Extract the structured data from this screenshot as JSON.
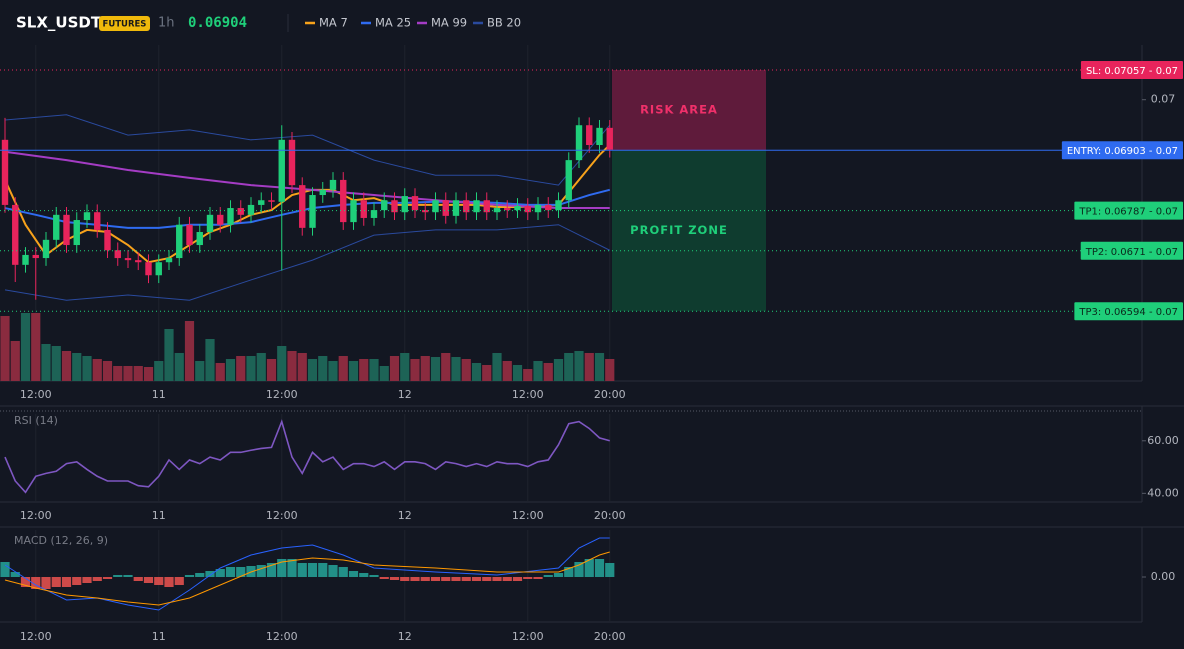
{
  "header": {
    "symbol": "SLX_USDT",
    "badge": "FUTURES",
    "interval": "1h",
    "price": "0.06904"
  },
  "chart_data": [
    {
      "type": "candlestick",
      "categories": [
        null,
        null,
        null,
        "12:00",
        null,
        null,
        null,
        null,
        null,
        null,
        null,
        null,
        null,
        null,
        null,
        "11",
        null,
        null,
        null,
        null,
        null,
        null,
        null,
        null,
        null,
        null,
        null,
        "12:00",
        null,
        null,
        null,
        null,
        null,
        null,
        null,
        null,
        null,
        null,
        null,
        "12",
        null,
        null,
        null,
        null,
        null,
        null,
        null,
        null,
        null,
        null,
        null,
        "12:00",
        null,
        null,
        null,
        null,
        null,
        null,
        null,
        "20:00"
      ],
      "open": [
        0.06923,
        0.06798,
        0.06683,
        0.06702,
        0.06696,
        0.06731,
        0.06779,
        0.06721,
        0.06769,
        0.06784,
        0.0675,
        0.06711,
        0.06696,
        0.06692,
        0.06688,
        0.06663,
        0.06688,
        0.06696,
        0.0676,
        0.06721,
        0.06746,
        0.06779,
        0.0676,
        0.06792,
        0.06779,
        0.06798,
        0.06807,
        0.06804,
        0.06923,
        0.06836,
        0.06754,
        0.06817,
        0.06827,
        0.06846,
        0.06765,
        0.06807,
        0.06773,
        0.06788,
        0.06807,
        0.06784,
        0.06815,
        0.06788,
        0.06784,
        0.06807,
        0.06777,
        0.06807,
        0.06784,
        0.06807,
        0.06784,
        0.06792,
        0.06788,
        0.06796,
        0.06784,
        0.06798,
        0.06788,
        0.06807,
        0.06884,
        0.06951,
        0.06913,
        0.06946
      ],
      "high": [
        0.06965,
        0.06813,
        0.06717,
        0.06717,
        0.06746,
        0.06794,
        0.06794,
        0.06784,
        0.06799,
        0.06799,
        0.06765,
        0.06726,
        0.06711,
        0.06707,
        0.06703,
        0.06703,
        0.06711,
        0.06775,
        0.06775,
        0.06761,
        0.06794,
        0.06794,
        0.06807,
        0.06807,
        0.06813,
        0.06822,
        0.06822,
        0.06951,
        0.06938,
        0.06851,
        0.06832,
        0.06842,
        0.06861,
        0.06861,
        0.06822,
        0.06822,
        0.06803,
        0.06822,
        0.06822,
        0.0683,
        0.0683,
        0.06803,
        0.06822,
        0.06822,
        0.06822,
        0.06822,
        0.06822,
        0.06822,
        0.06807,
        0.06807,
        0.06811,
        0.06811,
        0.06813,
        0.06813,
        0.06822,
        0.06899,
        0.06966,
        0.06966,
        0.06961,
        0.06961
      ],
      "low": [
        0.06783,
        0.0665,
        0.06668,
        0.06616,
        0.06681,
        0.06716,
        0.06706,
        0.06706,
        0.06754,
        0.06735,
        0.06696,
        0.06681,
        0.06677,
        0.06673,
        0.06648,
        0.06648,
        0.06673,
        0.06681,
        0.06706,
        0.06706,
        0.06731,
        0.06745,
        0.06745,
        0.06764,
        0.06764,
        0.06783,
        0.06789,
        0.06672,
        0.06821,
        0.06739,
        0.06739,
        0.06802,
        0.06812,
        0.0675,
        0.0675,
        0.06758,
        0.06758,
        0.06773,
        0.06769,
        0.06769,
        0.06773,
        0.06769,
        0.06769,
        0.06762,
        0.06762,
        0.06769,
        0.06769,
        0.06769,
        0.06769,
        0.06773,
        0.06773,
        0.06769,
        0.06769,
        0.06773,
        0.06773,
        0.06792,
        0.06869,
        0.06898,
        0.06898,
        0.06889
      ],
      "close": [
        0.06798,
        0.06683,
        0.06702,
        0.06696,
        0.06731,
        0.06779,
        0.06721,
        0.06769,
        0.06784,
        0.0675,
        0.06711,
        0.06696,
        0.06692,
        0.06688,
        0.06663,
        0.06688,
        0.06696,
        0.0676,
        0.06721,
        0.06746,
        0.06779,
        0.0676,
        0.06792,
        0.06779,
        0.06798,
        0.06807,
        0.06804,
        0.06923,
        0.06836,
        0.06754,
        0.06817,
        0.06827,
        0.06846,
        0.06765,
        0.06807,
        0.06773,
        0.06788,
        0.06807,
        0.06784,
        0.06815,
        0.06788,
        0.06784,
        0.06807,
        0.06777,
        0.06807,
        0.06784,
        0.06807,
        0.06784,
        0.06792,
        0.06788,
        0.06796,
        0.06784,
        0.06798,
        0.06788,
        0.06807,
        0.06884,
        0.06951,
        0.06913,
        0.06946,
        0.06904
      ],
      "up_color": "#1fcf7a",
      "down_color": "#e8245c",
      "ylim": [
        0.0646,
        0.07105
      ],
      "yticks": [
        0.07
      ],
      "series": [
        {
          "name": "MA 7",
          "color": "#f7a21b",
          "x": [
            0,
            2,
            4,
            6,
            8,
            10,
            12,
            14,
            16,
            18,
            20,
            22,
            24,
            26,
            28,
            30,
            32,
            34,
            36,
            38,
            40,
            42,
            44,
            46,
            48,
            50,
            52,
            54,
            56,
            58,
            59
          ],
          "values": [
            0.06846,
            0.0676,
            0.06702,
            0.06731,
            0.0675,
            0.06746,
            0.06721,
            0.06688,
            0.06696,
            0.06721,
            0.06746,
            0.0676,
            0.06779,
            0.06788,
            0.06817,
            0.06827,
            0.06827,
            0.06807,
            0.06811,
            0.06798,
            0.06798,
            0.06798,
            0.06798,
            0.06798,
            0.06794,
            0.06794,
            0.06796,
            0.06798,
            0.06846,
            0.06894,
            0.06913
          ]
        },
        {
          "name": "MA 25",
          "color": "#2f6bf0",
          "x": [
            0,
            3,
            6,
            9,
            12,
            15,
            18,
            21,
            24,
            27,
            30,
            33,
            36,
            39,
            42,
            45,
            48,
            51,
            54,
            57,
            59
          ],
          "values": [
            0.06792,
            0.06779,
            0.06765,
            0.0676,
            0.06754,
            0.06754,
            0.0676,
            0.0676,
            0.06765,
            0.06779,
            0.06792,
            0.06798,
            0.06802,
            0.06802,
            0.06804,
            0.06804,
            0.06802,
            0.06798,
            0.06798,
            0.06817,
            0.06827
          ]
        },
        {
          "name": "MA 99",
          "color": "#a43cc4",
          "x": [
            0,
            6,
            12,
            18,
            24,
            30,
            36,
            42,
            48,
            54,
            59
          ],
          "values": [
            0.069,
            0.06884,
            0.06865,
            0.0685,
            0.06836,
            0.06827,
            0.06817,
            0.06807,
            0.06798,
            0.06792,
            0.06792
          ]
        },
        {
          "name": "BB 20",
          "color": "#2a4a9e",
          "x": [
            0,
            6,
            12,
            18,
            24,
            30,
            36,
            42,
            48,
            54,
            59
          ],
          "upper": [
            0.06961,
            0.06971,
            0.06932,
            0.06942,
            0.06923,
            0.06932,
            0.06884,
            0.06855,
            0.06855,
            0.06836,
            0.06951
          ],
          "lower": [
            0.06635,
            0.06615,
            0.06625,
            0.06615,
            0.06654,
            0.06692,
            0.0674,
            0.0675,
            0.0675,
            0.0676,
            0.06711
          ]
        }
      ],
      "levels": [
        {
          "label": "SL: 0.07057 - 0.07",
          "value": 0.07057,
          "color": "#e8245c",
          "dash": true
        },
        {
          "label": "ENTRY: 0.06903 - 0.07",
          "value": 0.06903,
          "color": "#2f6bf0",
          "dash": false
        },
        {
          "label": "TP1: 0.06787 - 0.07",
          "value": 0.06787,
          "color": "#1fcf7a",
          "dash": true
        },
        {
          "label": "TP2: 0.0671 - 0.07",
          "value": 0.0671,
          "color": "#1fcf7a",
          "dash": true
        },
        {
          "label": "TP3: 0.06594 - 0.07",
          "value": 0.06594,
          "color": "#1fcf7a",
          "dash": true
        }
      ],
      "zones": [
        {
          "label": "RISK AREA",
          "range": [
            0.06903,
            0.07057
          ],
          "color": "#7a1d44",
          "text_color": "#f0306a"
        },
        {
          "label": "PROFIT ZONE",
          "range": [
            0.06594,
            0.06903
          ],
          "color": "#0f4a34",
          "text_color": "#1fcf7a"
        }
      ]
    },
    {
      "type": "bar",
      "values": [
        65,
        40,
        68,
        68,
        37,
        35,
        30,
        28,
        25,
        22,
        20,
        15,
        15,
        15,
        14,
        20,
        52,
        28,
        60,
        20,
        42,
        18,
        22,
        25,
        25,
        28,
        22,
        35,
        30,
        28,
        22,
        25,
        20,
        25,
        20,
        22,
        22,
        15,
        25,
        28,
        22,
        25,
        24,
        28,
        24,
        22,
        18,
        16,
        28,
        20,
        16,
        12,
        20,
        18,
        22,
        28,
        30,
        28,
        28,
        22
      ],
      "up_color": "#1d6356",
      "down_color": "#8a2b3f",
      "ylim": [
        0,
        336
      ]
    },
    {
      "type": "line",
      "title": "RSI (14)",
      "color": "#7e57c2",
      "categories": [
        null,
        null,
        null,
        "12:00",
        null,
        null,
        null,
        null,
        null,
        null,
        null,
        null,
        null,
        null,
        null,
        "11",
        null,
        null,
        null,
        null,
        null,
        null,
        null,
        null,
        null,
        null,
        null,
        "12:00",
        null,
        null,
        null,
        null,
        null,
        null,
        null,
        null,
        null,
        null,
        null,
        "12",
        null,
        null,
        null,
        null,
        null,
        null,
        null,
        null,
        null,
        null,
        null,
        "12:00",
        null,
        null,
        null,
        null,
        null,
        null,
        null,
        "20:00"
      ],
      "values": [
        53.8,
        44.7,
        40.4,
        46.5,
        47.6,
        48.4,
        51.3,
        52,
        49.1,
        46.5,
        44.7,
        44.7,
        44.7,
        42.9,
        42.5,
        46.5,
        52.7,
        49.1,
        52.7,
        51.3,
        53.8,
        52.7,
        55.6,
        55.6,
        56.4,
        57.1,
        57.5,
        67.3,
        53.8,
        47.6,
        55.6,
        52,
        53.8,
        49.1,
        51.3,
        51.3,
        50.2,
        52,
        49.1,
        52,
        52,
        51.3,
        49.1,
        52,
        51.3,
        50.2,
        51.3,
        50.2,
        52,
        51.3,
        51.3,
        50.2,
        52,
        52.7,
        58.5,
        66.5,
        67.3,
        64.7,
        61.1,
        60
      ],
      "ylim": [
        36.7,
        70.2
      ],
      "yticks": [
        {
          "value": 60,
          "label": "60.00"
        },
        {
          "value": 40,
          "label": "40.00"
        }
      ]
    },
    {
      "type": "macd",
      "title": "MACD (12, 26, 9)",
      "categories": [
        null,
        null,
        null,
        "12:00",
        null,
        null,
        null,
        null,
        null,
        null,
        null,
        null,
        null,
        null,
        null,
        "11",
        null,
        null,
        null,
        null,
        null,
        null,
        null,
        null,
        null,
        null,
        null,
        "12:00",
        null,
        null,
        null,
        null,
        null,
        null,
        null,
        null,
        null,
        null,
        null,
        "12",
        null,
        null,
        null,
        null,
        null,
        null,
        null,
        null,
        null,
        null,
        null,
        "12:00",
        null,
        null,
        null,
        null,
        null,
        null,
        null,
        "20:00"
      ],
      "values": [
        3e-05,
        1e-05,
        -2e-05,
        -2.4e-05,
        -2.4e-05,
        -2e-05,
        -2e-05,
        -1.6e-05,
        -1.2e-05,
        -8e-06,
        -4e-06,
        4e-06,
        4e-06,
        -8e-06,
        -1.2e-05,
        -1.6e-05,
        -2e-05,
        -1.6e-05,
        4e-06,
        8e-06,
        1.2e-05,
        1.6e-05,
        2e-05,
        2e-05,
        2.2e-05,
        2.4e-05,
        2.8e-05,
        3.6e-05,
        3.6e-05,
        2.8e-05,
        2.8e-05,
        2.8e-05,
        2.4e-05,
        2e-05,
        1.2e-05,
        8e-06,
        4e-06,
        -4e-06,
        -6e-06,
        -8e-06,
        -8e-06,
        -8e-06,
        -8e-06,
        -8e-06,
        -8e-06,
        -8e-06,
        -8e-06,
        -8e-06,
        -8e-06,
        -8e-06,
        -8e-06,
        -4e-06,
        -4e-06,
        4e-06,
        8e-06,
        2e-05,
        3e-05,
        3.6e-05,
        3.6e-05,
        2.8e-05
      ],
      "up_color": "#26a69a",
      "down_color": "#ef5350",
      "series": [
        {
          "color": "#2962ff",
          "x": [
            0,
            3,
            6,
            9,
            12,
            15,
            18,
            21,
            24,
            27,
            30,
            33,
            36,
            42,
            48,
            54,
            56,
            58,
            59
          ],
          "values": [
            2.4e-05,
            -1.6e-05,
            -4.6e-05,
            -4.2e-05,
            -5.6e-05,
            -6.6e-05,
            -2.6e-05,
            1.8e-05,
            4.4e-05,
            5.8e-05,
            6.4e-05,
            4.4e-05,
            1.8e-05,
            1e-05,
            4e-06,
            1.8e-05,
            5.8e-05,
            7.8e-05,
            7.8e-05
          ]
        },
        {
          "color": "#ff9800",
          "x": [
            0,
            3,
            6,
            9,
            12,
            15,
            18,
            21,
            24,
            27,
            30,
            33,
            36,
            42,
            48,
            54,
            56,
            58,
            59
          ],
          "values": [
            -6e-06,
            -2.2e-05,
            -3.6e-05,
            -4.2e-05,
            -5e-05,
            -5.6e-05,
            -4.2e-05,
            -1.6e-05,
            1e-05,
            3e-05,
            3.8e-05,
            3.4e-05,
            2.4e-05,
            1.8e-05,
            1e-05,
            1e-05,
            2.4e-05,
            4.4e-05,
            5e-05
          ]
        }
      ],
      "ylim": [
        -9e-05,
        9.4e-05
      ],
      "yticks": [
        {
          "value": 0,
          "label": "0.00"
        }
      ]
    }
  ]
}
